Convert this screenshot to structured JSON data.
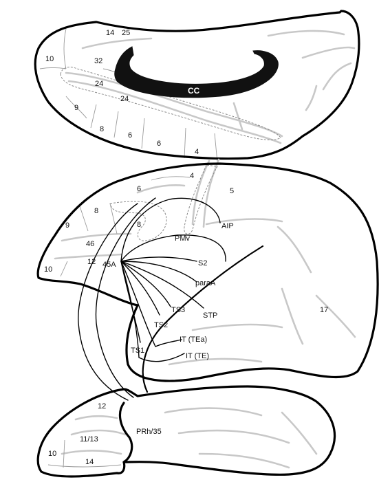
{
  "labels": {
    "medial": {
      "a14": "14",
      "a25": "25",
      "a10": "10",
      "a32": "32",
      "a24_upper": "24",
      "a24_lower": "24",
      "a9": "9",
      "a8": "8",
      "a6_left": "6",
      "a6_right": "6",
      "a4": "4",
      "cc": "CC"
    },
    "lateral": {
      "a4": "4",
      "a6": "6",
      "a5": "5",
      "a8_upper": "8",
      "a8_lower": "8",
      "a9": "9",
      "a46": "46",
      "a12": "12",
      "a10": "10",
      "a45A": "45A",
      "PMv": "PMv",
      "AIP": "AIP",
      "S2": "S2",
      "paraA": "paraA",
      "TS3": "TS3",
      "TS2": "TS2",
      "STP": "STP",
      "TS1": "TS1",
      "IT_TEa": "IT (TEa)",
      "IT_TE": "IT (TE)",
      "a17": "17"
    },
    "orbital": {
      "a12": "12",
      "PRh35": "PRh/35",
      "a11_13": "11/13",
      "a10": "10",
      "a14": "14"
    }
  }
}
